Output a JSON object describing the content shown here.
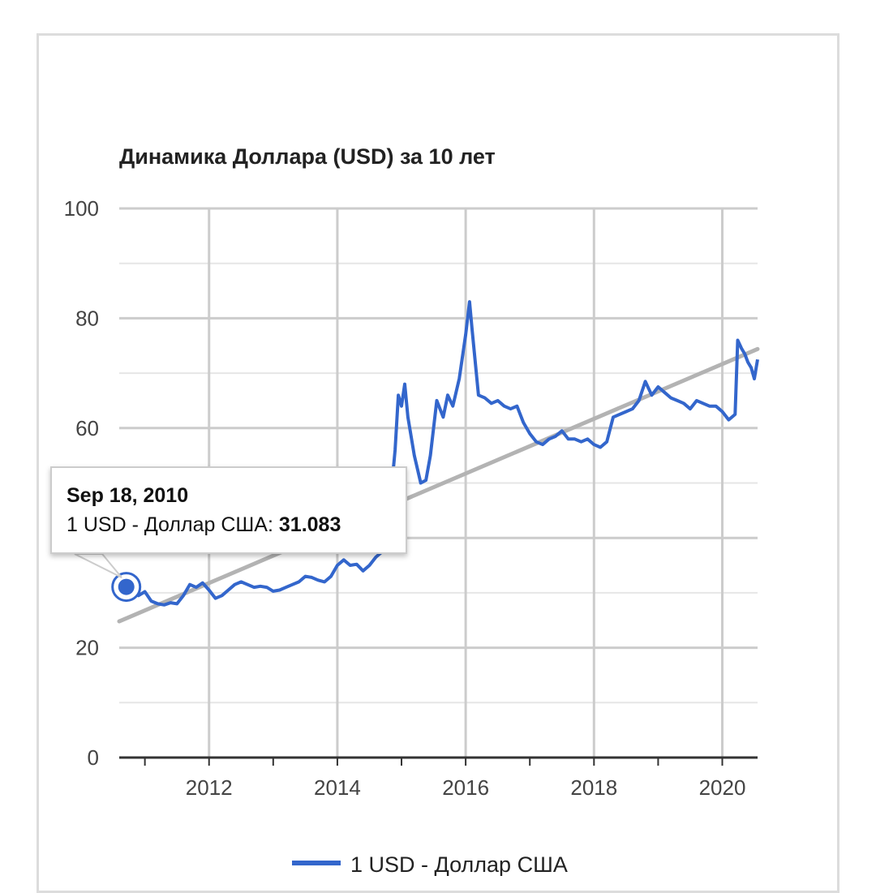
{
  "chart_data": {
    "type": "line",
    "title": "Динамика Доллара (USD) за 10 лет",
    "xlabel": "",
    "ylabel": "",
    "xlim": [
      2010.6,
      2020.55
    ],
    "ylim": [
      0,
      100
    ],
    "x_ticks": [
      "2012",
      "2014",
      "2016",
      "2018",
      "2020"
    ],
    "y_ticks": [
      "0",
      "20",
      "60",
      "80",
      "100"
    ],
    "grid": true,
    "legend_position": "bottom",
    "colors": {
      "series": "#3366cc",
      "trend": "#b3b3b3",
      "grid": "#cccccc",
      "axis": "#333333"
    },
    "series": [
      {
        "name": "1 USD - Доллар США",
        "x": [
          2010.71,
          2010.8,
          2010.9,
          2011.0,
          2011.1,
          2011.2,
          2011.3,
          2011.4,
          2011.5,
          2011.6,
          2011.7,
          2011.8,
          2011.9,
          2012.0,
          2012.1,
          2012.2,
          2012.3,
          2012.4,
          2012.5,
          2012.6,
          2012.7,
          2012.8,
          2012.9,
          2013.0,
          2013.1,
          2013.2,
          2013.3,
          2013.4,
          2013.5,
          2013.6,
          2013.7,
          2013.8,
          2013.9,
          2014.0,
          2014.1,
          2014.2,
          2014.3,
          2014.4,
          2014.5,
          2014.6,
          2014.7,
          2014.8,
          2014.9,
          2014.95,
          2015.0,
          2015.05,
          2015.1,
          2015.2,
          2015.3,
          2015.38,
          2015.45,
          2015.55,
          2015.65,
          2015.72,
          2015.8,
          2015.9,
          2016.0,
          2016.06,
          2016.1,
          2016.2,
          2016.3,
          2016.4,
          2016.5,
          2016.6,
          2016.7,
          2016.8,
          2016.9,
          2017.0,
          2017.1,
          2017.2,
          2017.3,
          2017.4,
          2017.5,
          2017.6,
          2017.7,
          2017.8,
          2017.9,
          2018.0,
          2018.1,
          2018.2,
          2018.3,
          2018.4,
          2018.5,
          2018.6,
          2018.7,
          2018.8,
          2018.9,
          2019.0,
          2019.1,
          2019.2,
          2019.3,
          2019.4,
          2019.5,
          2019.6,
          2019.7,
          2019.8,
          2019.9,
          2020.0,
          2020.1,
          2020.2,
          2020.24,
          2020.3,
          2020.35,
          2020.4,
          2020.45,
          2020.5,
          2020.55
        ],
        "values": [
          31.1,
          30.5,
          29.5,
          30.2,
          28.5,
          28.0,
          27.8,
          28.2,
          28.0,
          29.5,
          31.5,
          31.0,
          31.8,
          30.5,
          29.0,
          29.5,
          30.5,
          31.5,
          32.0,
          31.5,
          31.0,
          31.2,
          31.0,
          30.3,
          30.5,
          31.0,
          31.5,
          32.0,
          33.0,
          32.8,
          32.3,
          32.0,
          33.0,
          35.0,
          36.0,
          35.0,
          35.2,
          34.0,
          35.0,
          36.5,
          37.5,
          43.5,
          56.0,
          66.0,
          64.0,
          68.0,
          62.0,
          55.0,
          50.0,
          50.5,
          55.0,
          65.0,
          62.0,
          66.0,
          64.0,
          69.0,
          77.0,
          83.0,
          78.0,
          66.0,
          65.5,
          64.5,
          65.0,
          64.0,
          63.5,
          64.0,
          61.0,
          59.0,
          57.5,
          57.0,
          58.0,
          58.5,
          59.5,
          58.0,
          58.0,
          57.5,
          58.0,
          57.0,
          56.5,
          57.5,
          62.0,
          62.5,
          63.0,
          63.5,
          65.0,
          68.5,
          66.0,
          67.5,
          66.5,
          65.5,
          65.0,
          64.5,
          63.5,
          65.0,
          64.5,
          64.0,
          64.0,
          63.0,
          61.5,
          62.5,
          76.0,
          74.5,
          73.5,
          72.0,
          71.0,
          69.0,
          72.5
        ]
      }
    ],
    "trend": {
      "x": [
        2010.6,
        2020.55
      ],
      "values": [
        24.8,
        74.4
      ]
    }
  },
  "tooltip": {
    "date": "Sep 18, 2010",
    "label": "1 USD - Доллар США:",
    "value": "31.083",
    "point_x": 2010.71,
    "point_y": 31.083
  }
}
